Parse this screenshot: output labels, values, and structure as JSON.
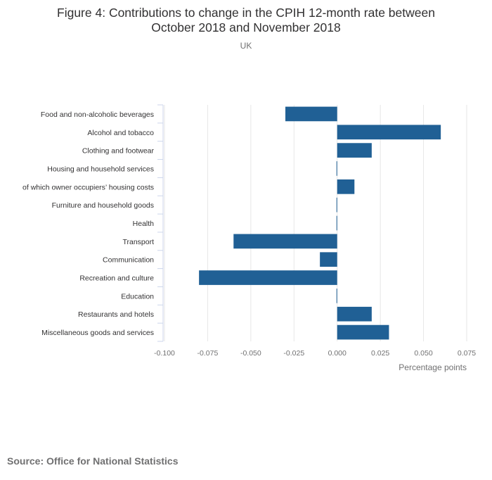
{
  "chart_data": {
    "type": "bar",
    "orientation": "horizontal",
    "title_line1": "Figure 4: Contributions to change in the CPIH 12-month rate between",
    "title_line2": "October 2018 and November 2018",
    "subtitle": "UK",
    "xlabel": "Percentage points",
    "ylabel": "",
    "xlim": [
      -0.1,
      0.075
    ],
    "xticks": [
      "-0.100",
      "-0.075",
      "-0.050",
      "-0.025",
      "0.000",
      "0.025",
      "0.050",
      "0.075"
    ],
    "grid": true,
    "categories": [
      "Food and non-alcoholic beverages",
      "Alcohol and tobacco",
      "Clothing and footwear",
      "Housing and household services",
      "of which owner occupiers’ housing costs",
      "Furniture and household goods",
      "Health",
      "Transport",
      "Communication",
      "Recreation and culture",
      "Education",
      "Restaurants and hotels",
      "Miscellaneous goods and services"
    ],
    "values": [
      -0.03,
      0.06,
      0.02,
      0.0,
      0.01,
      0.0,
      0.0,
      -0.06,
      -0.01,
      -0.08,
      0.0,
      0.02,
      0.03
    ],
    "bar_color": "#206095"
  },
  "source": "Source: Office for National Statistics"
}
